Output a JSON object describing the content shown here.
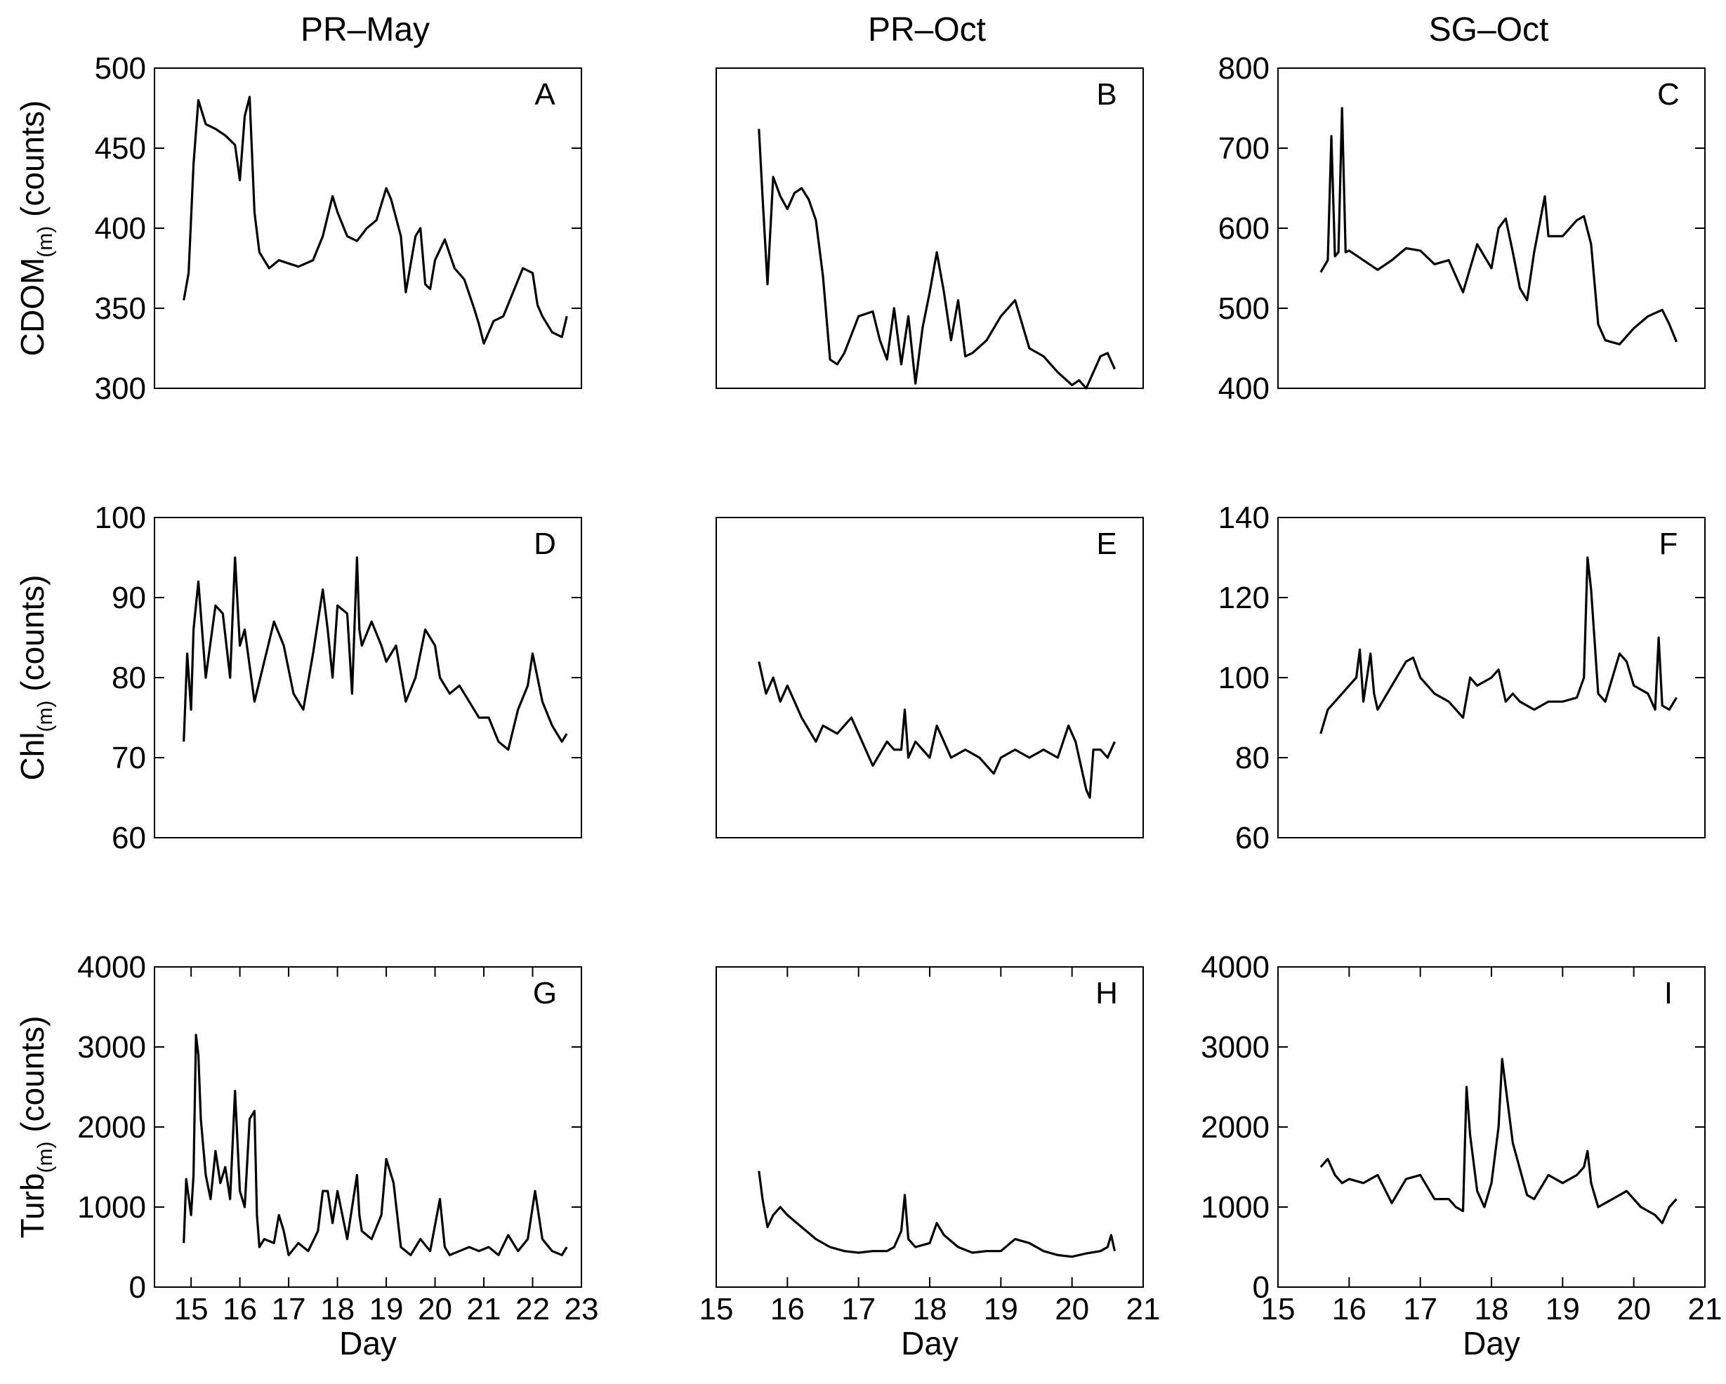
{
  "figure": {
    "column_titles": [
      "PR–May",
      "PR–Oct",
      "SG–Oct"
    ],
    "row_ylabels": [
      {
        "base": "CDOM",
        "sub": "(m)",
        "unit": " (counts)"
      },
      {
        "base": "Chl",
        "sub": "(m)",
        "unit": " (counts)"
      },
      {
        "base": "Turb",
        "sub": "(m)",
        "unit": " (counts)"
      }
    ],
    "xlabel": "Day",
    "line_color": "#000000"
  },
  "chart_data": [
    {
      "type": "line",
      "panel": "A",
      "row": 0,
      "col": 0,
      "title": "PR–May",
      "ylabel": "CDOM(m) (counts)",
      "xlim": [
        14.25,
        23
      ],
      "ylim": [
        300,
        500
      ],
      "yticks": [
        300,
        350,
        400,
        450,
        500
      ],
      "xticks": [],
      "series": [
        {
          "name": "CDOM",
          "x": [
            14.85,
            14.95,
            15.05,
            15.15,
            15.3,
            15.5,
            15.7,
            15.9,
            16.0,
            16.1,
            16.2,
            16.3,
            16.4,
            16.6,
            16.8,
            17.0,
            17.2,
            17.5,
            17.7,
            17.9,
            18.0,
            18.2,
            18.4,
            18.6,
            18.8,
            19.0,
            19.1,
            19.3,
            19.4,
            19.6,
            19.7,
            19.8,
            19.9,
            20.0,
            20.2,
            20.4,
            20.6,
            20.8,
            20.9,
            21.0,
            21.2,
            21.4,
            21.6,
            21.8,
            22.0,
            22.1,
            22.2,
            22.4,
            22.6,
            22.7
          ],
          "y": [
            355,
            372,
            440,
            480,
            465,
            462,
            458,
            452,
            430,
            470,
            482,
            410,
            385,
            375,
            380,
            378,
            376,
            380,
            395,
            420,
            410,
            395,
            392,
            400,
            405,
            425,
            418,
            395,
            360,
            395,
            400,
            365,
            362,
            380,
            393,
            375,
            368,
            350,
            340,
            328,
            342,
            345,
            360,
            375,
            372,
            352,
            345,
            335,
            332,
            345
          ]
        }
      ]
    },
    {
      "type": "line",
      "panel": "B",
      "row": 0,
      "col": 1,
      "title": "PR–Oct",
      "ylabel": "",
      "xlim": [
        15,
        21
      ],
      "ylim": [
        300,
        500
      ],
      "yticks": [],
      "xticks": [],
      "series": [
        {
          "name": "CDOM",
          "x": [
            15.6,
            15.65,
            15.72,
            15.8,
            15.9,
            16.0,
            16.1,
            16.2,
            16.3,
            16.4,
            16.5,
            16.6,
            16.7,
            16.8,
            17.0,
            17.2,
            17.3,
            17.4,
            17.5,
            17.6,
            17.7,
            17.8,
            17.9,
            18.0,
            18.1,
            18.2,
            18.3,
            18.4,
            18.5,
            18.6,
            18.8,
            19.0,
            19.2,
            19.4,
            19.6,
            19.8,
            20.0,
            20.1,
            20.2,
            20.4,
            20.5,
            20.6
          ],
          "y": [
            462,
            420,
            365,
            432,
            420,
            412,
            422,
            425,
            418,
            405,
            370,
            318,
            315,
            322,
            345,
            348,
            330,
            318,
            350,
            315,
            345,
            303,
            338,
            360,
            385,
            360,
            330,
            355,
            320,
            322,
            330,
            345,
            355,
            325,
            320,
            310,
            302,
            305,
            300,
            320,
            322,
            312
          ]
        }
      ]
    },
    {
      "type": "line",
      "panel": "C",
      "row": 0,
      "col": 2,
      "title": "SG–Oct",
      "ylabel": "",
      "xlim": [
        15,
        21
      ],
      "ylim": [
        400,
        800
      ],
      "yticks": [
        400,
        500,
        600,
        700,
        800
      ],
      "xticks": [],
      "series": [
        {
          "name": "CDOM",
          "x": [
            15.6,
            15.7,
            15.75,
            15.8,
            15.85,
            15.9,
            15.95,
            16.0,
            16.2,
            16.4,
            16.6,
            16.8,
            17.0,
            17.2,
            17.4,
            17.6,
            17.8,
            18.0,
            18.1,
            18.2,
            18.3,
            18.4,
            18.5,
            18.6,
            18.75,
            18.8,
            19.0,
            19.2,
            19.3,
            19.4,
            19.5,
            19.6,
            19.8,
            20.0,
            20.2,
            20.4,
            20.5,
            20.6
          ],
          "y": [
            545,
            560,
            715,
            565,
            570,
            750,
            570,
            572,
            560,
            548,
            560,
            575,
            572,
            555,
            560,
            520,
            580,
            550,
            600,
            612,
            570,
            525,
            510,
            570,
            640,
            590,
            590,
            610,
            615,
            580,
            480,
            460,
            455,
            475,
            490,
            498,
            480,
            458
          ]
        }
      ]
    },
    {
      "type": "line",
      "panel": "D",
      "row": 1,
      "col": 0,
      "title": "",
      "ylabel": "Chl(m) (counts)",
      "xlim": [
        14.25,
        23
      ],
      "ylim": [
        60,
        100
      ],
      "yticks": [
        60,
        70,
        80,
        90,
        100
      ],
      "xticks": [],
      "series": [
        {
          "name": "Chl",
          "x": [
            14.85,
            14.92,
            15.0,
            15.05,
            15.15,
            15.3,
            15.5,
            15.65,
            15.8,
            15.9,
            16.0,
            16.1,
            16.3,
            16.5,
            16.7,
            16.9,
            17.1,
            17.3,
            17.5,
            17.7,
            17.8,
            17.9,
            18.0,
            18.2,
            18.3,
            18.4,
            18.45,
            18.5,
            18.7,
            18.9,
            19.0,
            19.2,
            19.4,
            19.6,
            19.8,
            20.0,
            20.1,
            20.3,
            20.5,
            20.7,
            20.9,
            21.1,
            21.3,
            21.5,
            21.7,
            21.9,
            22.0,
            22.2,
            22.4,
            22.6,
            22.7
          ],
          "y": [
            72,
            83,
            76,
            86,
            92,
            80,
            89,
            88,
            80,
            95,
            84,
            86,
            77,
            82,
            87,
            84,
            78,
            76,
            83,
            91,
            86,
            80,
            89,
            88,
            78,
            95,
            86,
            84,
            87,
            84,
            82,
            84,
            77,
            80,
            86,
            84,
            80,
            78,
            79,
            77,
            75,
            75,
            72,
            71,
            76,
            79,
            83,
            77,
            74,
            72,
            73
          ]
        }
      ]
    },
    {
      "type": "line",
      "panel": "E",
      "row": 1,
      "col": 1,
      "title": "",
      "ylabel": "",
      "xlim": [
        15,
        21
      ],
      "ylim": [
        60,
        100
      ],
      "yticks": [],
      "xticks": [],
      "series": [
        {
          "name": "Chl",
          "x": [
            15.6,
            15.7,
            15.8,
            15.9,
            16.0,
            16.1,
            16.2,
            16.4,
            16.5,
            16.7,
            16.9,
            17.0,
            17.2,
            17.4,
            17.5,
            17.6,
            17.65,
            17.7,
            17.8,
            18.0,
            18.1,
            18.2,
            18.3,
            18.5,
            18.7,
            18.9,
            19.0,
            19.2,
            19.4,
            19.6,
            19.8,
            19.95,
            20.05,
            20.2,
            20.25,
            20.3,
            20.4,
            20.5,
            20.6
          ],
          "y": [
            82,
            78,
            80,
            77,
            79,
            77,
            75,
            72,
            74,
            73,
            75,
            73,
            69,
            72,
            71,
            71,
            76,
            70,
            72,
            70,
            74,
            72,
            70,
            71,
            70,
            68,
            70,
            71,
            70,
            71,
            70,
            74,
            72,
            66,
            65,
            71,
            71,
            70,
            72
          ]
        }
      ]
    },
    {
      "type": "line",
      "panel": "F",
      "row": 1,
      "col": 2,
      "title": "",
      "ylabel": "",
      "xlim": [
        15,
        21
      ],
      "ylim": [
        60,
        140
      ],
      "yticks": [
        60,
        80,
        100,
        120,
        140
      ],
      "xticks": [],
      "series": [
        {
          "name": "Chl",
          "x": [
            15.6,
            15.7,
            15.8,
            15.9,
            16.0,
            16.1,
            16.15,
            16.2,
            16.3,
            16.35,
            16.4,
            16.6,
            16.8,
            16.9,
            17.0,
            17.2,
            17.4,
            17.6,
            17.7,
            17.8,
            18.0,
            18.1,
            18.2,
            18.3,
            18.4,
            18.6,
            18.8,
            19.0,
            19.2,
            19.3,
            19.35,
            19.4,
            19.5,
            19.6,
            19.8,
            19.9,
            20.0,
            20.2,
            20.3,
            20.35,
            20.4,
            20.5,
            20.6
          ],
          "y": [
            86,
            92,
            94,
            96,
            98,
            100,
            107,
            94,
            106,
            96,
            92,
            98,
            104,
            105,
            100,
            96,
            94,
            90,
            100,
            98,
            100,
            102,
            94,
            96,
            94,
            92,
            94,
            94,
            95,
            100,
            130,
            122,
            96,
            94,
            106,
            104,
            98,
            96,
            92,
            110,
            93,
            92,
            95
          ]
        }
      ]
    },
    {
      "type": "line",
      "panel": "G",
      "row": 2,
      "col": 0,
      "title": "",
      "ylabel": "Turb(m) (counts)",
      "xlim": [
        14.25,
        23
      ],
      "ylim": [
        0,
        4000
      ],
      "yticks": [
        0,
        1000,
        2000,
        3000,
        4000
      ],
      "xticks": [
        15,
        16,
        17,
        18,
        19,
        20,
        21,
        22,
        23
      ],
      "series": [
        {
          "name": "Turb",
          "x": [
            14.85,
            14.9,
            15.0,
            15.05,
            15.1,
            15.15,
            15.2,
            15.3,
            15.4,
            15.5,
            15.6,
            15.7,
            15.8,
            15.9,
            16.0,
            16.1,
            16.2,
            16.3,
            16.35,
            16.4,
            16.5,
            16.7,
            16.8,
            16.9,
            17.0,
            17.2,
            17.4,
            17.6,
            17.7,
            17.8,
            17.9,
            18.0,
            18.2,
            18.4,
            18.45,
            18.5,
            18.7,
            18.9,
            19.0,
            19.15,
            19.3,
            19.5,
            19.7,
            19.9,
            20.1,
            20.2,
            20.3,
            20.5,
            20.7,
            20.9,
            21.1,
            21.3,
            21.5,
            21.7,
            21.9,
            22.05,
            22.2,
            22.4,
            22.6,
            22.7
          ],
          "y": [
            550,
            1350,
            900,
            1400,
            3150,
            2900,
            2100,
            1400,
            1100,
            1700,
            1300,
            1500,
            1100,
            2450,
            1200,
            1000,
            2100,
            2200,
            900,
            500,
            600,
            550,
            900,
            700,
            400,
            550,
            450,
            700,
            1200,
            1200,
            800,
            1200,
            600,
            1400,
            900,
            700,
            600,
            900,
            1600,
            1300,
            500,
            400,
            600,
            450,
            1100,
            500,
            400,
            450,
            500,
            450,
            500,
            400,
            650,
            450,
            600,
            1200,
            600,
            450,
            400,
            500
          ]
        }
      ]
    },
    {
      "type": "line",
      "panel": "H",
      "row": 2,
      "col": 1,
      "title": "",
      "ylabel": "",
      "xlim": [
        15,
        21
      ],
      "ylim": [
        0,
        4000
      ],
      "yticks": [],
      "xticks": [
        15,
        16,
        17,
        18,
        19,
        20,
        21
      ],
      "series": [
        {
          "name": "Turb",
          "x": [
            15.6,
            15.65,
            15.72,
            15.8,
            15.9,
            16.0,
            16.2,
            16.4,
            16.6,
            16.8,
            17.0,
            17.2,
            17.4,
            17.5,
            17.6,
            17.65,
            17.7,
            17.8,
            18.0,
            18.1,
            18.2,
            18.4,
            18.6,
            18.8,
            19.0,
            19.2,
            19.4,
            19.6,
            19.8,
            20.0,
            20.2,
            20.4,
            20.5,
            20.55,
            20.6
          ],
          "y": [
            1450,
            1100,
            750,
            900,
            1000,
            900,
            750,
            600,
            500,
            450,
            430,
            450,
            450,
            500,
            700,
            1150,
            600,
            500,
            550,
            800,
            650,
            500,
            430,
            450,
            450,
            600,
            550,
            450,
            400,
            380,
            420,
            450,
            500,
            650,
            450
          ]
        }
      ]
    },
    {
      "type": "line",
      "panel": "I",
      "row": 2,
      "col": 2,
      "title": "",
      "ylabel": "",
      "xlim": [
        15,
        21
      ],
      "ylim": [
        0,
        4000
      ],
      "yticks": [
        0,
        1000,
        2000,
        3000,
        4000
      ],
      "xticks": [
        15,
        16,
        17,
        18,
        19,
        20,
        21
      ],
      "series": [
        {
          "name": "Turb",
          "x": [
            15.6,
            15.7,
            15.8,
            15.9,
            16.0,
            16.2,
            16.4,
            16.6,
            16.8,
            17.0,
            17.2,
            17.4,
            17.5,
            17.6,
            17.65,
            17.7,
            17.8,
            17.9,
            18.0,
            18.1,
            18.15,
            18.2,
            18.3,
            18.5,
            18.6,
            18.8,
            19.0,
            19.2,
            19.3,
            19.35,
            19.4,
            19.5,
            19.7,
            19.9,
            20.1,
            20.3,
            20.4,
            20.5,
            20.6
          ],
          "y": [
            1500,
            1600,
            1400,
            1300,
            1350,
            1300,
            1400,
            1050,
            1350,
            1400,
            1100,
            1100,
            1000,
            950,
            2500,
            1900,
            1200,
            1000,
            1300,
            2000,
            2850,
            2500,
            1800,
            1150,
            1100,
            1400,
            1300,
            1400,
            1500,
            1700,
            1300,
            1000,
            1100,
            1200,
            1000,
            900,
            800,
            1000,
            1100
          ]
        }
      ]
    }
  ]
}
